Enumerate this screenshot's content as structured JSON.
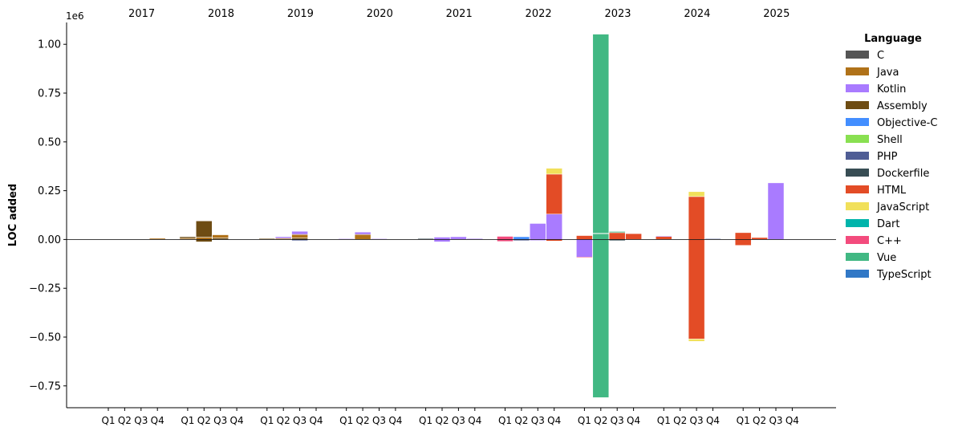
{
  "chart_data": {
    "type": "bar",
    "stacked": true,
    "ylabel": "LOC added",
    "y_offset_label": "1e6",
    "ylim": [
      -0.86,
      1.1
    ],
    "yticks": [
      -0.75,
      -0.5,
      -0.25,
      0.0,
      0.25,
      0.5,
      0.75,
      1.0
    ],
    "ytick_labels": [
      "−0.75",
      "−0.50",
      "−0.25",
      "0.00",
      "0.25",
      "0.50",
      "0.75",
      "1.00"
    ],
    "years": [
      "2017",
      "2018",
      "2019",
      "2020",
      "2021",
      "2022",
      "2023",
      "2024",
      "2025"
    ],
    "quarters": [
      "Q1",
      "Q2",
      "Q3",
      "Q4"
    ],
    "legend": {
      "title": "Language",
      "position": "right",
      "items": [
        {
          "name": "C",
          "color": "#555555"
        },
        {
          "name": "Java",
          "color": "#b07219"
        },
        {
          "name": "Kotlin",
          "color": "#a97bff"
        },
        {
          "name": "Assembly",
          "color": "#6e4c13"
        },
        {
          "name": "Objective-C",
          "color": "#438eff"
        },
        {
          "name": "Shell",
          "color": "#89e051"
        },
        {
          "name": "PHP",
          "color": "#4f5d95"
        },
        {
          "name": "Dockerfile",
          "color": "#384d54"
        },
        {
          "name": "HTML",
          "color": "#e34c26"
        },
        {
          "name": "JavaScript",
          "color": "#f1e05a"
        },
        {
          "name": "Dart",
          "color": "#00b4ab"
        },
        {
          "name": "C++",
          "color": "#f34b7d"
        },
        {
          "name": "Vue",
          "color": "#41b883"
        },
        {
          "name": "TypeScript",
          "color": "#3178c6"
        }
      ]
    },
    "values_unit": "1e6 LOC",
    "bars": [
      {
        "year": "2017",
        "quarter": "Q4",
        "segments": [
          {
            "lang": "Java",
            "value": 0.006
          }
        ]
      },
      {
        "year": "2018",
        "quarter": "Q1",
        "segments": [
          {
            "lang": "Java",
            "value": 0.006
          },
          {
            "lang": "Assembly",
            "value": 0.008
          }
        ]
      },
      {
        "year": "2018",
        "quarter": "Q2",
        "segments": [
          {
            "lang": "Java",
            "value": 0.012
          },
          {
            "lang": "Assembly",
            "value": 0.083
          },
          {
            "lang": "Assembly",
            "value": -0.012
          }
        ]
      },
      {
        "year": "2018",
        "quarter": "Q3",
        "segments": [
          {
            "lang": "Assembly",
            "value": 0.008
          },
          {
            "lang": "Java",
            "value": 0.016
          }
        ]
      },
      {
        "year": "2019",
        "quarter": "Q1",
        "segments": [
          {
            "lang": "Assembly",
            "value": 0.005
          }
        ]
      },
      {
        "year": "2019",
        "quarter": "Q2",
        "segments": [
          {
            "lang": "Java",
            "value": 0.006
          },
          {
            "lang": "Kotlin",
            "value": 0.008
          }
        ]
      },
      {
        "year": "2019",
        "quarter": "Q3",
        "segments": [
          {
            "lang": "Assembly",
            "value": 0.008
          },
          {
            "lang": "Java",
            "value": 0.018
          },
          {
            "lang": "Kotlin",
            "value": 0.016
          },
          {
            "lang": "PHP",
            "value": -0.006
          }
        ]
      },
      {
        "year": "2020",
        "quarter": "Q1",
        "segments": [
          {
            "lang": "Kotlin",
            "value": 0.004
          }
        ]
      },
      {
        "year": "2020",
        "quarter": "Q2",
        "segments": [
          {
            "lang": "Java",
            "value": 0.026
          },
          {
            "lang": "Kotlin",
            "value": 0.012
          }
        ]
      },
      {
        "year": "2020",
        "quarter": "Q3",
        "segments": [
          {
            "lang": "Kotlin",
            "value": 0.004
          }
        ]
      },
      {
        "year": "2021",
        "quarter": "Q1",
        "segments": [
          {
            "lang": "Dockerfile",
            "value": 0.005
          }
        ]
      },
      {
        "year": "2021",
        "quarter": "Q2",
        "segments": [
          {
            "lang": "Kotlin",
            "value": 0.012
          },
          {
            "lang": "Kotlin",
            "value": -0.012
          }
        ]
      },
      {
        "year": "2021",
        "quarter": "Q3",
        "segments": [
          {
            "lang": "Kotlin",
            "value": 0.014
          }
        ]
      },
      {
        "year": "2021",
        "quarter": "Q4",
        "segments": [
          {
            "lang": "Kotlin",
            "value": 0.005
          }
        ]
      },
      {
        "year": "2022",
        "quarter": "Q1",
        "segments": [
          {
            "lang": "C++",
            "value": 0.016
          },
          {
            "lang": "C++",
            "value": -0.01
          }
        ]
      },
      {
        "year": "2022",
        "quarter": "Q2",
        "segments": [
          {
            "lang": "Objective-C",
            "value": 0.014
          },
          {
            "lang": "PHP",
            "value": -0.006
          }
        ]
      },
      {
        "year": "2022",
        "quarter": "Q3",
        "segments": [
          {
            "lang": "Kotlin",
            "value": 0.082
          },
          {
            "lang": "Kotlin",
            "value": -0.005
          }
        ]
      },
      {
        "year": "2022",
        "quarter": "Q4",
        "segments": [
          {
            "lang": "Kotlin",
            "value": 0.13
          },
          {
            "lang": "HTML",
            "value": 0.205
          },
          {
            "lang": "JavaScript",
            "value": 0.03
          },
          {
            "lang": "HTML",
            "value": -0.008
          }
        ]
      },
      {
        "year": "2023",
        "quarter": "Q1",
        "segments": [
          {
            "lang": "HTML",
            "value": 0.02
          },
          {
            "lang": "Kotlin",
            "value": -0.09
          },
          {
            "lang": "C++",
            "value": -0.004
          }
        ]
      },
      {
        "year": "2023",
        "quarter": "Q2",
        "segments": [
          {
            "lang": "Vue",
            "value": 0.03
          },
          {
            "lang": "HTML",
            "value": 0.002
          },
          {
            "lang": "Vue",
            "value": 1.02
          },
          {
            "lang": "Vue",
            "value": -0.81
          }
        ]
      },
      {
        "year": "2023",
        "quarter": "Q3",
        "segments": [
          {
            "lang": "HTML",
            "value": 0.035
          },
          {
            "lang": "Vue",
            "value": 0.006
          },
          {
            "lang": "Dockerfile",
            "value": -0.006
          }
        ]
      },
      {
        "year": "2023",
        "quarter": "Q4",
        "segments": [
          {
            "lang": "HTML",
            "value": 0.03
          }
        ]
      },
      {
        "year": "2024",
        "quarter": "Q1",
        "segments": [
          {
            "lang": "HTML",
            "value": 0.015
          },
          {
            "lang": "Kotlin",
            "value": 0.004
          }
        ]
      },
      {
        "year": "2024",
        "quarter": "Q3",
        "segments": [
          {
            "lang": "HTML",
            "value": 0.22
          },
          {
            "lang": "JavaScript",
            "value": 0.025
          },
          {
            "lang": "HTML",
            "value": -0.51
          },
          {
            "lang": "JavaScript",
            "value": -0.012
          }
        ]
      },
      {
        "year": "2024",
        "quarter": "Q4",
        "segments": [
          {
            "lang": "PHP",
            "value": 0.004
          }
        ]
      },
      {
        "year": "2025",
        "quarter": "Q1",
        "segments": [
          {
            "lang": "HTML",
            "value": 0.035
          },
          {
            "lang": "HTML",
            "value": -0.03
          }
        ]
      },
      {
        "year": "2025",
        "quarter": "Q2",
        "segments": [
          {
            "lang": "HTML",
            "value": 0.01
          }
        ]
      },
      {
        "year": "2025",
        "quarter": "Q3",
        "segments": [
          {
            "lang": "Kotlin",
            "value": 0.29
          }
        ]
      }
    ]
  }
}
